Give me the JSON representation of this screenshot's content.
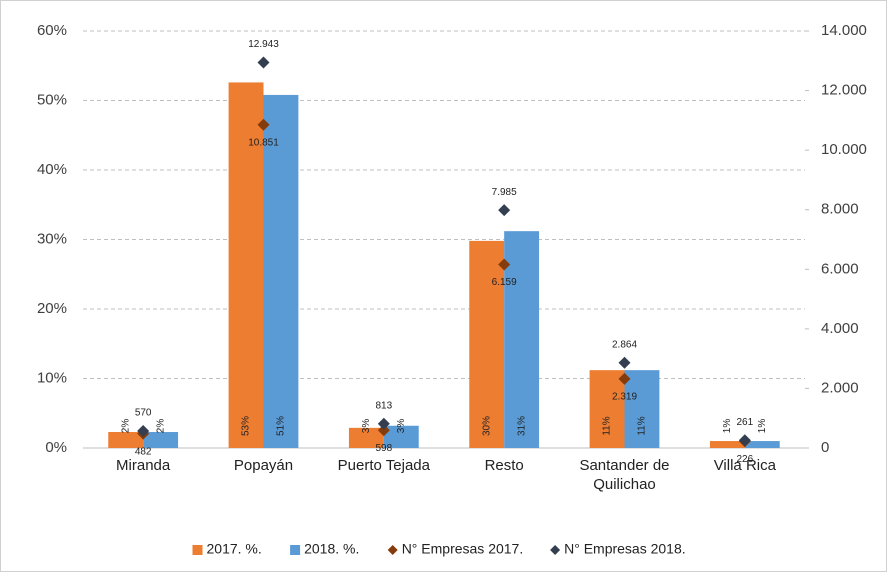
{
  "chart_data": {
    "type": "bar",
    "categories": [
      "Miranda",
      "Popayán",
      "Puerto Tejada",
      "Resto",
      "Santander de Quilichao",
      "Villa Rica"
    ],
    "series": [
      {
        "name": "2017. %.",
        "color": "#ed7d31",
        "values": [
          2.3,
          52.6,
          2.9,
          29.8,
          11.2,
          1.0
        ],
        "value_labels": [
          "2%",
          "53%",
          "3%",
          "30%",
          "11%",
          "1%"
        ]
      },
      {
        "name": "2018. %.",
        "color": "#5b9bd5",
        "values": [
          2.3,
          50.8,
          3.2,
          31.2,
          11.2,
          1.0
        ],
        "value_labels": [
          "2%",
          "51%",
          "3%",
          "31%",
          "11%",
          "1%"
        ]
      },
      {
        "name": "N° Empresas 2017.",
        "type": "scatter",
        "axis": "y2",
        "color": "#843c0c",
        "values": [
          482,
          10851,
          598,
          6159,
          2319,
          226
        ],
        "value_labels": [
          "482",
          "10.851",
          "598",
          "6.159",
          "2.319",
          "226"
        ]
      },
      {
        "name": "N° Empresas 2018.",
        "type": "scatter",
        "axis": "y2",
        "color": "#333f50",
        "values": [
          570,
          12943,
          813,
          7985,
          2864,
          261
        ],
        "value_labels": [
          "570",
          "12.943",
          "813",
          "7.985",
          "2.864",
          "261"
        ]
      }
    ],
    "ylim": [
      0,
      60
    ],
    "yticks": [
      {
        "value": 0,
        "label": "0%"
      },
      {
        "value": 10,
        "label": "10%"
      },
      {
        "value": 20,
        "label": "20%"
      },
      {
        "value": 30,
        "label": "30%"
      },
      {
        "value": 40,
        "label": "40%"
      },
      {
        "value": 50,
        "label": "50%"
      },
      {
        "value": 60,
        "label": "60%"
      }
    ],
    "y2lim": [
      0,
      14000
    ],
    "y2ticks": [
      0,
      {
        "value": 2000,
        "label": "2.000"
      },
      {
        "value": 4000,
        "label": "4.000"
      },
      {
        "value": 6000,
        "label": "6.000"
      },
      {
        "value": 8000,
        "label": "8.000"
      },
      {
        "value": 10000,
        "label": "10.000"
      },
      {
        "value": 12000,
        "label": "12.000"
      },
      {
        "value": 14000,
        "label": "14.000"
      }
    ],
    "grid": true,
    "legend": "bottom"
  }
}
